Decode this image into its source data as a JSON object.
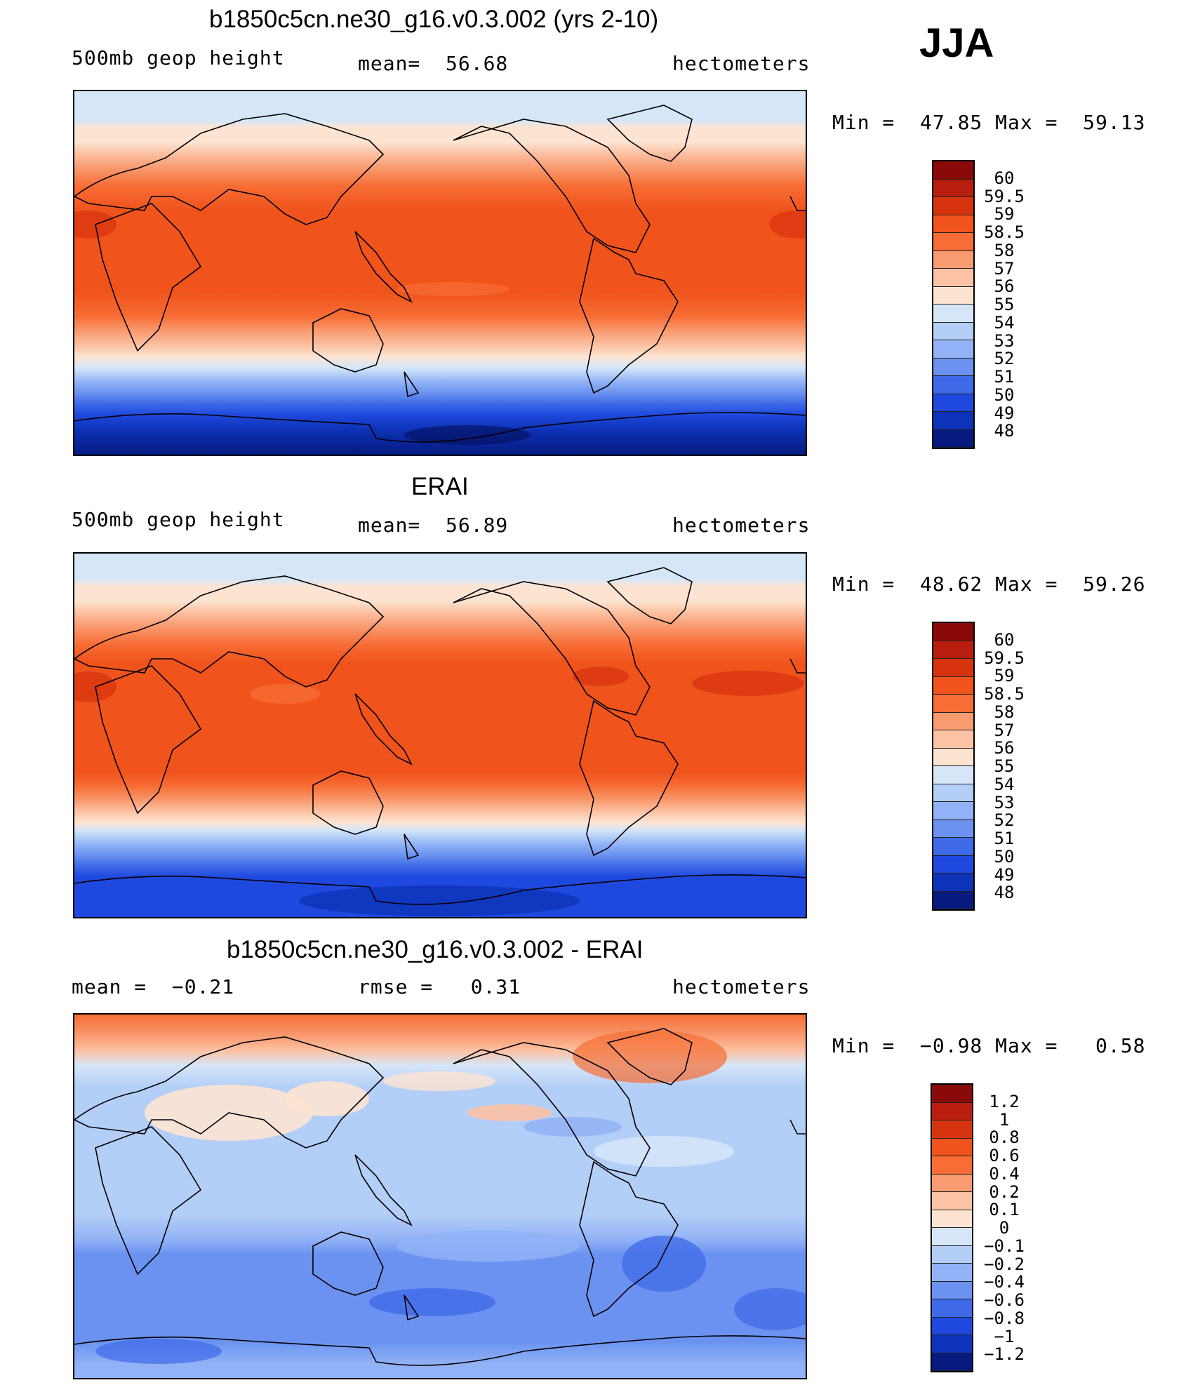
{
  "season": "JJA",
  "panels": [
    {
      "title": "b1850c5cn.ne30_g16.v0.3.002 (yrs 2-10)",
      "left_text": "500mb geop height",
      "center_text": "mean=  56.68",
      "right_text": "hectometers",
      "minmax": "Min =  47.85 Max =  59.13"
    },
    {
      "title": "ERAI",
      "left_text": "500mb geop height",
      "center_text": "mean=  56.89",
      "right_text": "hectometers",
      "minmax": "Min =  48.62 Max =  59.26"
    },
    {
      "title": "b1850c5cn.ne30_g16.v0.3.002 - ERAI",
      "left_text": "mean =  −0.21",
      "center_text": "rmse =   0.31",
      "right_text": "hectometers",
      "minmax": "Min =  −0.98 Max =   0.58"
    }
  ],
  "colorbars": {
    "height": {
      "labels": [
        "60",
        "59.5",
        "59",
        "58.5",
        "58",
        "57",
        "56",
        "55",
        "54",
        "53",
        "52",
        "51",
        "50",
        "49",
        "48"
      ],
      "colors": [
        "#8a0a0a",
        "#b81d0d",
        "#d8330f",
        "#f0531c",
        "#f76d35",
        "#f99b71",
        "#fcc2a4",
        "#fde4d2",
        "#d5e6f8",
        "#b3cef7",
        "#91b2f6",
        "#6b92f0",
        "#3e6ae8",
        "#1f49de",
        "#0d33b8",
        "#061a80"
      ]
    },
    "difference": {
      "labels": [
        "1.2",
        "1",
        "0.8",
        "0.6",
        "0.4",
        "0.2",
        "0.1",
        "0",
        "−0.1",
        "−0.2",
        "−0.4",
        "−0.6",
        "−0.8",
        "−1",
        "−1.2"
      ],
      "colors": [
        "#8a0a0a",
        "#b81d0d",
        "#d8330f",
        "#f0531c",
        "#f76d35",
        "#f99b71",
        "#fcc2a4",
        "#fde4d2",
        "#d5e6f8",
        "#b3cef7",
        "#91b2f6",
        "#6b92f0",
        "#3e6ae8",
        "#1f49de",
        "#0d33b8",
        "#061a80"
      ]
    }
  }
}
